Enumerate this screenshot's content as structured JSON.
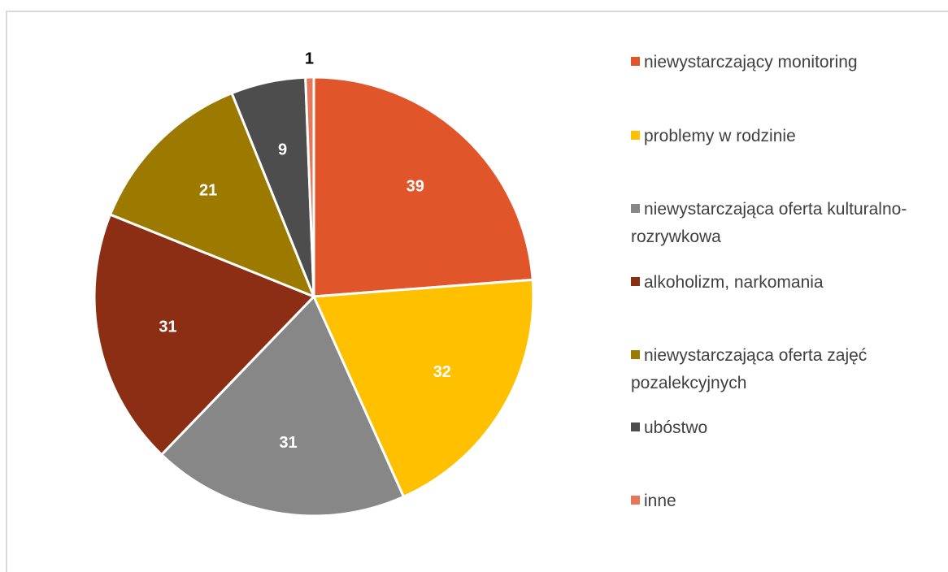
{
  "chart_data": {
    "type": "pie",
    "categories": [
      "niewystarczający monitoring",
      "problemy w rodzinie",
      "niewystarczająca oferta kulturalno-rozrywkowa",
      "alkoholizm, narkomania",
      "niewystarczająca oferta zajęć pozalekcyjnych",
      "ubóstwo",
      "inne"
    ],
    "values": [
      39,
      32,
      31,
      31,
      21,
      9,
      1
    ],
    "colors": [
      "#e0552a",
      "#ffc000",
      "#878787",
      "#8b2e14",
      "#9c7a00",
      "#4d4d4d",
      "#e8765a"
    ],
    "legend": "right"
  }
}
